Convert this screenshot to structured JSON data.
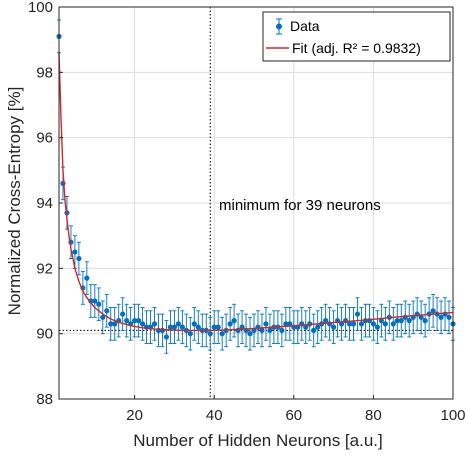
{
  "chart_data": {
    "type": "scatter",
    "xlabel": "Number of Hidden Neurons [a.u.]",
    "ylabel": "Normalized Cross-Entropy [%]",
    "xlim": [
      1,
      100
    ],
    "ylim": [
      88,
      100
    ],
    "xticks": [
      "20",
      "40",
      "60",
      "80",
      "100"
    ],
    "yticks": [
      "88",
      "90",
      "92",
      "94",
      "96",
      "98",
      "100"
    ],
    "grid": true,
    "legend_position": "top-right",
    "annotation": "minimum for 39 neurons",
    "minimum": {
      "x": 39,
      "y": 90.1
    },
    "series": [
      {
        "name": "Data",
        "kind": "points-with-errorbars",
        "color": "#0072BD",
        "x": [
          1,
          2,
          3,
          4,
          5,
          6,
          7,
          8,
          9,
          10,
          11,
          12,
          13,
          14,
          15,
          16,
          17,
          18,
          19,
          20,
          21,
          22,
          23,
          24,
          25,
          26,
          27,
          28,
          29,
          30,
          31,
          32,
          33,
          34,
          35,
          36,
          37,
          38,
          39,
          40,
          41,
          42,
          43,
          44,
          45,
          46,
          47,
          48,
          49,
          50,
          51,
          52,
          53,
          54,
          55,
          56,
          57,
          58,
          59,
          60,
          61,
          62,
          63,
          64,
          65,
          66,
          67,
          68,
          69,
          70,
          71,
          72,
          73,
          74,
          75,
          76,
          77,
          78,
          79,
          80,
          81,
          82,
          83,
          84,
          85,
          86,
          87,
          88,
          89,
          90,
          91,
          92,
          93,
          94,
          95,
          96,
          97,
          98,
          99,
          100
        ],
        "y": [
          99.1,
          94.6,
          93.7,
          92.8,
          92.5,
          92.3,
          91.4,
          91.7,
          91.0,
          91.0,
          90.9,
          90.5,
          90.7,
          90.3,
          90.3,
          90.4,
          90.6,
          90.4,
          90.3,
          90.4,
          90.4,
          90.3,
          90.2,
          90.2,
          90.3,
          90.1,
          90.1,
          89.9,
          90.2,
          90.2,
          90.3,
          90.2,
          90.1,
          90.0,
          90.3,
          90.2,
          90.1,
          90.1,
          90.0,
          90.2,
          90.2,
          90.0,
          90.1,
          90.3,
          90.4,
          90.1,
          90.2,
          90.1,
          90.0,
          90.1,
          90.2,
          90.1,
          90.3,
          90.1,
          90.2,
          90.2,
          90.1,
          90.3,
          90.3,
          90.2,
          90.2,
          90.3,
          90.2,
          90.3,
          90.1,
          90.2,
          90.3,
          90.4,
          90.3,
          90.2,
          90.4,
          90.3,
          90.4,
          90.3,
          90.3,
          90.6,
          90.3,
          90.4,
          90.4,
          90.3,
          90.2,
          90.4,
          90.3,
          90.5,
          90.3,
          90.4,
          90.4,
          90.5,
          90.4,
          90.5,
          90.6,
          90.5,
          90.4,
          90.6,
          90.7,
          90.6,
          90.5,
          90.6,
          90.5,
          90.3
        ],
        "error": 0.5
      },
      {
        "name": "Fit (adj. R² = 0.9832)",
        "kind": "line",
        "color": "#D9232A",
        "x": [
          1,
          1.5,
          2,
          2.5,
          3,
          3.5,
          4,
          5,
          6,
          7,
          8,
          9,
          10,
          12,
          14,
          16,
          18,
          20,
          22,
          25,
          28,
          32,
          36,
          39,
          42,
          46,
          50,
          55,
          60,
          65,
          70,
          75,
          80,
          85,
          90,
          95,
          100
        ],
        "y": [
          98.6,
          96.6,
          95.0,
          94.1,
          93.5,
          93.0,
          92.6,
          92.0,
          91.6,
          91.3,
          91.1,
          90.95,
          90.8,
          90.6,
          90.45,
          90.35,
          90.28,
          90.22,
          90.18,
          90.14,
          90.12,
          90.1,
          90.1,
          90.1,
          90.11,
          90.13,
          90.16,
          90.2,
          90.24,
          90.29,
          90.34,
          90.39,
          90.44,
          90.5,
          90.55,
          90.6,
          90.65
        ]
      }
    ],
    "reference_lines": [
      {
        "orientation": "vertical",
        "at": 39,
        "style": "dotted"
      },
      {
        "orientation": "horizontal",
        "at": 90.1,
        "style": "dotted"
      }
    ]
  }
}
